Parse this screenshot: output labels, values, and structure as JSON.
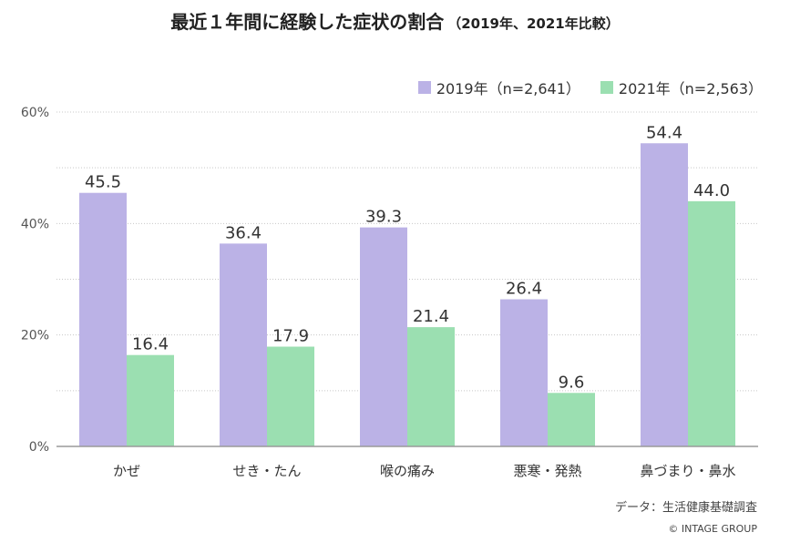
{
  "title": "最近１年間に経験した症状の割合",
  "subtitle": "（2019年、2021年比較）",
  "source": "データ：生活健康基礎調査",
  "copyright": "© INTAGE GROUP",
  "chart_data": {
    "type": "bar",
    "categories": [
      "かぜ",
      "せき・たん",
      "喉の痛み",
      "悪寒・発熱",
      "鼻づまり・鼻水"
    ],
    "series": [
      {
        "name": "2019年（n=2,641）",
        "color": "#bbb2e6",
        "values": [
          45.5,
          36.4,
          39.3,
          26.4,
          54.4
        ]
      },
      {
        "name": "2021年（n=2,563）",
        "color": "#9bdfb1",
        "values": [
          16.4,
          17.9,
          21.4,
          9.6,
          44.0
        ]
      }
    ],
    "ylim": [
      0,
      60
    ],
    "yticks": [
      "0%",
      "20%",
      "40%",
      "60%"
    ],
    "legend": "top-right",
    "grid": true
  }
}
